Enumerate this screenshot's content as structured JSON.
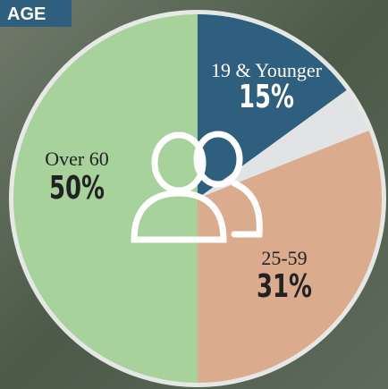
{
  "chart_data": {
    "type": "pie",
    "title": "AGE",
    "categories": [
      "19 & Younger",
      null,
      "25-59",
      "Over 60"
    ],
    "values": [
      15,
      4,
      31,
      50
    ],
    "value_labels": [
      "15%",
      null,
      "31%",
      "50%"
    ],
    "colors": [
      "#2e5f7e",
      "#e1e3e4",
      "#dbab8e",
      "#a8d29c"
    ]
  }
}
